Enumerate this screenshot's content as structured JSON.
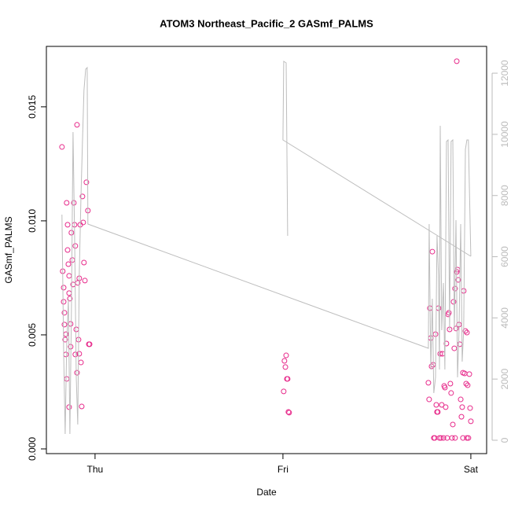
{
  "chart_data": {
    "type": "scatter",
    "title": "ATOM3 Northeast_Pacific_2 GASmf_PALMS",
    "xlabel": "Date",
    "ylabel": "GASmf_PALMS",
    "xlim": [
      -0.259,
      2.084
    ],
    "xticks": [
      {
        "value": 0,
        "label": "Thu"
      },
      {
        "value": 1,
        "label": "Fri"
      },
      {
        "value": 2,
        "label": "Sat"
      }
    ],
    "ylim": [
      -0.000207,
      0.01765
    ],
    "yticks": [
      {
        "value": 0,
        "label": "0.000"
      },
      {
        "value": 0.005,
        "label": "0.005"
      },
      {
        "value": 0.01,
        "label": "0.010"
      },
      {
        "value": 0.015,
        "label": "0.015"
      }
    ],
    "y2lim": [
      -437,
      12876
    ],
    "y2ticks": [
      0,
      2000,
      4000,
      6000,
      8000,
      10000,
      12000
    ],
    "series": [
      {
        "color": "#e7298a",
        "x": [
          -0.176,
          -0.172,
          -0.167,
          -0.167,
          -0.163,
          -0.163,
          -0.159,
          -0.155,
          -0.155,
          -0.151,
          -0.146,
          -0.146,
          -0.142,
          -0.138,
          -0.138,
          -0.134,
          -0.13,
          -0.13,
          -0.126,
          -0.121,
          -0.117,
          -0.113,
          -0.109,
          -0.105,
          -0.1,
          -0.096,
          -0.092,
          -0.088,
          -0.084,
          -0.079,
          -0.075,
          -0.071,
          -0.067,
          -0.063,
          -0.059,
          -0.054,
          -0.046,
          -0.038,
          -0.033,
          -0.029,
          -0.138,
          -0.151,
          -0.105,
          -0.096,
          -0.084,
          1.008,
          1.017,
          1.013,
          1.021,
          1.025,
          1.004,
          1.029,
          1.033,
          1.774,
          1.778,
          1.782,
          1.787,
          1.791,
          1.795,
          1.799,
          1.803,
          1.808,
          1.812,
          1.816,
          1.82,
          1.824,
          1.828,
          1.833,
          1.837,
          1.841,
          1.845,
          1.849,
          1.854,
          1.858,
          1.862,
          1.866,
          1.87,
          1.874,
          1.879,
          1.883,
          1.887,
          1.891,
          1.895,
          1.9,
          1.904,
          1.908,
          1.912,
          1.916,
          1.921,
          1.925,
          1.929,
          1.933,
          1.937,
          1.941,
          1.946,
          1.95,
          1.954,
          1.958,
          1.962,
          1.967,
          1.971,
          1.975,
          1.979,
          1.983,
          1.987,
          1.992,
          1.996,
          2.0,
          1.925,
          1.916,
          1.979,
          1.958
        ],
        "values": [
          0.01324,
          0.00779,
          0.00707,
          0.00645,
          0.00597,
          0.00545,
          0.00479,
          0.00503,
          0.00414,
          0.01079,
          0.00983,
          0.00872,
          0.0081,
          0.00759,
          0.00683,
          0.00659,
          0.00548,
          0.00448,
          0.00948,
          0.00828,
          0.00721,
          0.01079,
          0.00983,
          0.0089,
          0.00524,
          0.01421,
          0.00728,
          0.00479,
          0.00748,
          0.00983,
          0.00379,
          0.00186,
          0.01107,
          0.00993,
          0.00817,
          0.00738,
          0.01169,
          0.01045,
          0.00459,
          0.00459,
          0.00183,
          0.00307,
          0.00414,
          0.00334,
          0.00417,
          0.00386,
          0.0041,
          0.00359,
          0.00307,
          0.00307,
          0.00252,
          0.00162,
          0.00159,
          0.0029,
          0.00217,
          0.00617,
          0.00486,
          0.00362,
          0.00865,
          0.00369,
          0.00048,
          0.00048,
          0.00503,
          0.00193,
          0.00162,
          0.00162,
          0.00617,
          0.00048,
          0.00417,
          0.00048,
          0.00193,
          0.00417,
          0.00048,
          0.00276,
          0.00269,
          0.00183,
          0.00462,
          0.00048,
          0.0059,
          0.00597,
          0.00524,
          0.00286,
          0.00245,
          0.00048,
          0.00107,
          0.00645,
          0.00441,
          0.00703,
          0.00528,
          0.00776,
          0.00786,
          0.00741,
          0.00545,
          0.00459,
          0.00217,
          0.00141,
          0.00183,
          0.00334,
          0.00693,
          0.00331,
          0.00517,
          0.00286,
          0.0051,
          0.00279,
          0.00048,
          0.00328,
          0.00179,
          0.00121,
          0.017,
          0.00048,
          0.00048,
          0.00048
        ]
      },
      {
        "type": "line",
        "axis": "y2",
        "color": "#bdbdbd",
        "x": [
          -0.176,
          -0.167,
          -0.159,
          -0.151,
          -0.142,
          -0.134,
          -0.126,
          -0.117,
          -0.109,
          -0.1,
          -0.092,
          -0.084,
          -0.075,
          -0.067,
          -0.059,
          -0.05,
          -0.042,
          -0.038,
          1.774,
          1.778,
          1.787,
          1.795,
          1.803,
          1.812,
          1.82,
          1.828,
          1.833,
          1.837,
          1.845,
          1.854,
          1.862,
          1.87,
          1.879,
          1.887,
          1.895,
          1.904,
          1.912,
          1.921,
          1.929,
          1.937,
          1.946,
          1.954,
          1.962,
          1.971,
          1.979,
          1.987,
          2.0,
          null,
          1.025,
          1.017,
          1.004,
          1.0,
          2.0
        ],
        "values": [
          7376,
          2827,
          206,
          3084,
          4626,
          206,
          4112,
          10074,
          6682,
          2056,
          514,
          5397,
          7967,
          9766,
          11437,
          12130,
          12182,
          7068,
          3007,
          7068,
          2313,
          4626,
          1542,
          2056,
          6682,
          5397,
          2313,
          10280,
          3598,
          5140,
          2313,
          9766,
          9817,
          3598,
          9766,
          9817,
          3598,
          7196,
          2056,
          3598,
          7068,
          2571,
          3598,
          9509,
          9817,
          9817,
          6014,
          null,
          6682,
          12336,
          12387,
          9817,
          6014
        ]
      }
    ]
  }
}
